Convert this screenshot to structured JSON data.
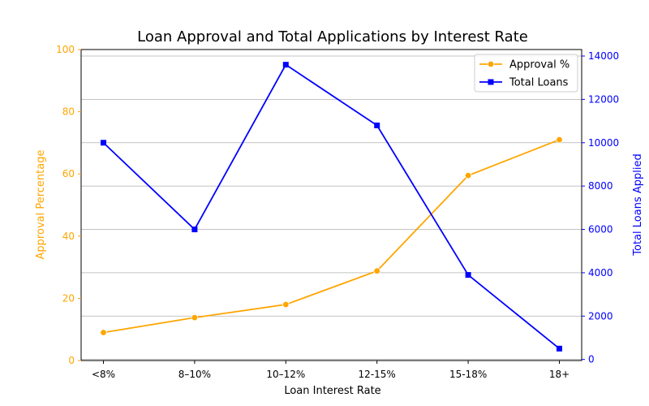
{
  "chart_data": {
    "type": "line",
    "title": "Loan Approval and Total Applications by Interest Rate",
    "xlabel": "Loan Interest Rate",
    "categories": [
      "<8%",
      "8–10%",
      "10–12%",
      "12-15%",
      "15-18%",
      "18+"
    ],
    "y_left": {
      "label": "Approval Percentage",
      "ylim": [
        0,
        100
      ],
      "ticks": [
        0,
        20,
        40,
        60,
        80,
        100
      ],
      "color": "#FFA500"
    },
    "y_right": {
      "label": "Total Loans Applied",
      "ylim": [
        -50,
        14300
      ],
      "ticks": [
        0,
        2000,
        4000,
        6000,
        8000,
        10000,
        12000,
        14000
      ],
      "color": "#0000FF"
    },
    "series": [
      {
        "name": "Approval %",
        "axis": "left",
        "color": "#FFA500",
        "marker": "circle",
        "values": [
          9,
          13.8,
          18,
          28.8,
          59.5,
          71
        ]
      },
      {
        "name": "Total Loans",
        "axis": "right",
        "color": "#0000FF",
        "marker": "square",
        "values": [
          10000,
          6000,
          13600,
          10800,
          3900,
          500
        ]
      }
    ],
    "grid": "horizontal (right axis ticks)",
    "legend": "top-right"
  }
}
